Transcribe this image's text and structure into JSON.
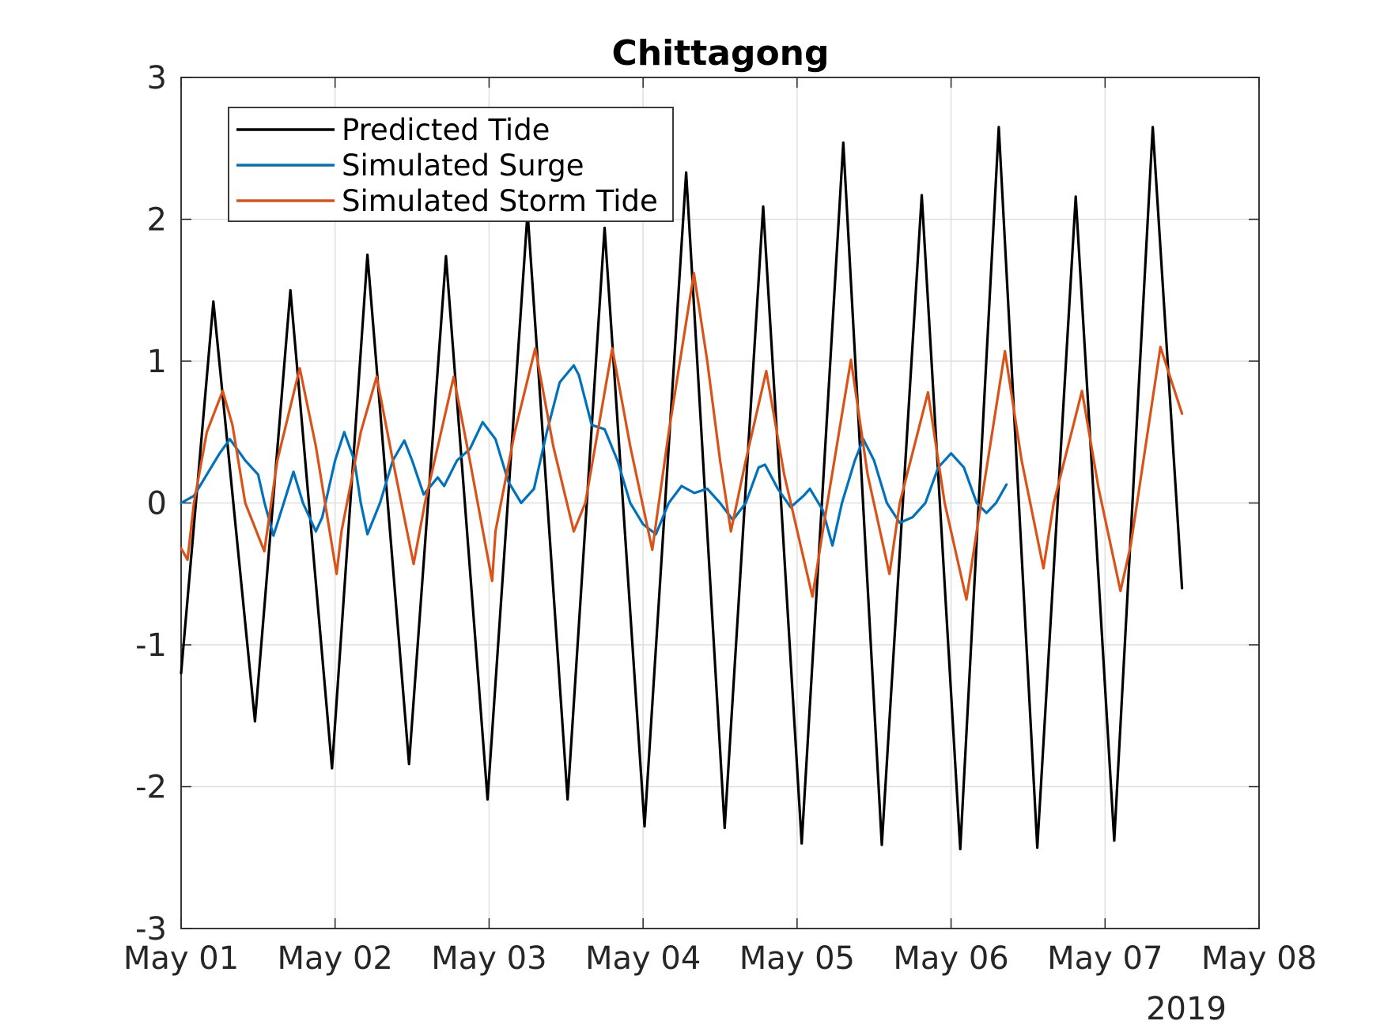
{
  "chart_data": {
    "type": "line",
    "title": "Chittagong",
    "xlabel": "",
    "ylabel": "",
    "year_label": "2019",
    "grid": true,
    "legend_position": "top-left",
    "x_tick_labels": [
      "May 01",
      "May 02",
      "May 03",
      "May 04",
      "May 05",
      "May 06",
      "May 07",
      "May 08"
    ],
    "xlim": [
      "2019-05-01",
      "2019-05-08"
    ],
    "ylim": [
      -3,
      3
    ],
    "y_ticks": [
      -3,
      -2,
      -1,
      0,
      1,
      2,
      3
    ],
    "y_tick_labels": [
      "-3",
      "-2",
      "-1",
      "0",
      "1",
      "2",
      "3"
    ],
    "series": [
      {
        "name": "Predicted Tide",
        "color": "#000000",
        "points": [
          [
            "2019-05-01T00:00",
            -1.2
          ],
          [
            "2019-05-01T05:02",
            1.42
          ],
          [
            "2019-05-01T11:31",
            -1.54
          ],
          [
            "2019-05-01T17:02",
            1.5
          ],
          [
            "2019-05-01T23:31",
            -1.87
          ],
          [
            "2019-05-02T05:02",
            1.75
          ],
          [
            "2019-05-02T11:31",
            -1.84
          ],
          [
            "2019-05-02T17:17",
            1.74
          ],
          [
            "2019-05-02T23:46",
            -2.09
          ],
          [
            "2019-05-03T06:00",
            2.05
          ],
          [
            "2019-05-03T12:14",
            -2.09
          ],
          [
            "2019-05-03T18:00",
            1.94
          ],
          [
            "2019-05-04T00:14",
            -2.28
          ],
          [
            "2019-05-04T06:43",
            2.33
          ],
          [
            "2019-05-04T12:43",
            -2.29
          ],
          [
            "2019-05-04T18:43",
            2.09
          ],
          [
            "2019-05-05T00:43",
            -2.4
          ],
          [
            "2019-05-05T07:12",
            2.54
          ],
          [
            "2019-05-05T13:12",
            -2.41
          ],
          [
            "2019-05-05T19:26",
            2.17
          ],
          [
            "2019-05-06T01:26",
            -2.44
          ],
          [
            "2019-05-06T07:26",
            2.65
          ],
          [
            "2019-05-06T13:26",
            -2.43
          ],
          [
            "2019-05-06T19:26",
            2.16
          ],
          [
            "2019-05-07T01:26",
            -2.38
          ],
          [
            "2019-05-07T07:26",
            2.65
          ],
          [
            "2019-05-07T12:00",
            -0.6
          ]
        ]
      },
      {
        "name": "Simulated Surge",
        "color": "#0072BD",
        "points": [
          [
            "2019-05-01T00:00",
            0.0
          ],
          [
            "2019-05-01T02:00",
            0.05
          ],
          [
            "2019-05-01T04:00",
            0.2
          ],
          [
            "2019-05-01T06:00",
            0.35
          ],
          [
            "2019-05-01T07:36",
            0.45
          ],
          [
            "2019-05-01T10:00",
            0.3
          ],
          [
            "2019-05-01T12:00",
            0.2
          ],
          [
            "2019-05-01T13:00",
            0.0
          ],
          [
            "2019-05-01T14:24",
            -0.23
          ],
          [
            "2019-05-01T16:00",
            0.0
          ],
          [
            "2019-05-01T17:31",
            0.22
          ],
          [
            "2019-05-01T19:00",
            0.0
          ],
          [
            "2019-05-01T21:00",
            -0.2
          ],
          [
            "2019-05-01T22:00",
            -0.1
          ],
          [
            "2019-05-02T00:00",
            0.3
          ],
          [
            "2019-05-02T01:26",
            0.5
          ],
          [
            "2019-05-02T03:00",
            0.3
          ],
          [
            "2019-05-02T04:00",
            0.0
          ],
          [
            "2019-05-02T05:02",
            -0.22
          ],
          [
            "2019-05-02T07:00",
            0.0
          ],
          [
            "2019-05-02T09:00",
            0.3
          ],
          [
            "2019-05-02T10:48",
            0.44
          ],
          [
            "2019-05-02T12:00",
            0.3
          ],
          [
            "2019-05-02T13:48",
            0.06
          ],
          [
            "2019-05-02T16:00",
            0.18
          ],
          [
            "2019-05-02T17:00",
            0.12
          ],
          [
            "2019-05-02T19:00",
            0.3
          ],
          [
            "2019-05-02T21:00",
            0.38
          ],
          [
            "2019-05-02T23:00",
            0.57
          ],
          [
            "2019-05-03T01:00",
            0.45
          ],
          [
            "2019-05-03T03:00",
            0.15
          ],
          [
            "2019-05-03T05:00",
            0.0
          ],
          [
            "2019-05-03T07:00",
            0.1
          ],
          [
            "2019-05-03T09:00",
            0.5
          ],
          [
            "2019-05-03T11:00",
            0.85
          ],
          [
            "2019-05-03T13:12",
            0.97
          ],
          [
            "2019-05-03T14:00",
            0.9
          ],
          [
            "2019-05-03T16:00",
            0.55
          ],
          [
            "2019-05-03T18:00",
            0.52
          ],
          [
            "2019-05-03T20:00",
            0.3
          ],
          [
            "2019-05-03T22:00",
            0.0
          ],
          [
            "2019-05-04T00:00",
            -0.15
          ],
          [
            "2019-05-04T02:00",
            -0.22
          ],
          [
            "2019-05-04T04:00",
            0.0
          ],
          [
            "2019-05-04T06:00",
            0.12
          ],
          [
            "2019-05-04T08:00",
            0.07
          ],
          [
            "2019-05-04T10:00",
            0.1
          ],
          [
            "2019-05-04T12:00",
            0.0
          ],
          [
            "2019-05-04T14:00",
            -0.12
          ],
          [
            "2019-05-04T16:00",
            0.0
          ],
          [
            "2019-05-04T18:00",
            0.25
          ],
          [
            "2019-05-04T19:00",
            0.27
          ],
          [
            "2019-05-04T21:00",
            0.1
          ],
          [
            "2019-05-04T23:00",
            -0.03
          ],
          [
            "2019-05-05T01:00",
            0.05
          ],
          [
            "2019-05-05T02:00",
            0.1
          ],
          [
            "2019-05-05T04:00",
            -0.05
          ],
          [
            "2019-05-05T05:31",
            -0.3
          ],
          [
            "2019-05-05T07:00",
            0.0
          ],
          [
            "2019-05-05T09:00",
            0.3
          ],
          [
            "2019-05-05T10:19",
            0.45
          ],
          [
            "2019-05-05T12:00",
            0.3
          ],
          [
            "2019-05-05T14:00",
            0.0
          ],
          [
            "2019-05-05T16:00",
            -0.14
          ],
          [
            "2019-05-05T18:00",
            -0.1
          ],
          [
            "2019-05-05T20:00",
            0.0
          ],
          [
            "2019-05-05T22:00",
            0.25
          ],
          [
            "2019-05-06T00:00",
            0.35
          ],
          [
            "2019-05-06T02:00",
            0.25
          ],
          [
            "2019-05-06T04:00",
            0.0
          ],
          [
            "2019-05-06T05:31",
            -0.07
          ],
          [
            "2019-05-06T07:00",
            0.0
          ],
          [
            "2019-05-06T08:38",
            0.13
          ]
        ]
      },
      {
        "name": "Simulated Storm Tide",
        "color": "#D95319",
        "points": [
          [
            "2019-05-01T00:00",
            -0.32
          ],
          [
            "2019-05-01T01:00",
            -0.4
          ],
          [
            "2019-05-01T02:00",
            0.0
          ],
          [
            "2019-05-01T04:00",
            0.5
          ],
          [
            "2019-05-01T06:29",
            0.79
          ],
          [
            "2019-05-01T08:00",
            0.55
          ],
          [
            "2019-05-01T10:00",
            0.0
          ],
          [
            "2019-05-01T12:58",
            -0.34
          ],
          [
            "2019-05-01T15:00",
            0.3
          ],
          [
            "2019-05-01T18:29",
            0.95
          ],
          [
            "2019-05-01T21:00",
            0.4
          ],
          [
            "2019-05-02T00:14",
            -0.5
          ],
          [
            "2019-05-02T01:00",
            -0.2
          ],
          [
            "2019-05-02T04:00",
            0.5
          ],
          [
            "2019-05-02T06:29",
            0.89
          ],
          [
            "2019-05-02T09:00",
            0.3
          ],
          [
            "2019-05-02T12:14",
            -0.43
          ],
          [
            "2019-05-02T14:00",
            0.0
          ],
          [
            "2019-05-02T18:29",
            0.89
          ],
          [
            "2019-05-02T21:00",
            0.3
          ],
          [
            "2019-05-03T00:29",
            -0.55
          ],
          [
            "2019-05-03T01:00",
            -0.2
          ],
          [
            "2019-05-03T04:00",
            0.5
          ],
          [
            "2019-05-03T07:12",
            1.09
          ],
          [
            "2019-05-03T10:00",
            0.4
          ],
          [
            "2019-05-03T13:12",
            -0.2
          ],
          [
            "2019-05-03T15:00",
            0.0
          ],
          [
            "2019-05-03T19:12",
            1.09
          ],
          [
            "2019-05-03T22:00",
            0.4
          ],
          [
            "2019-05-04T01:26",
            -0.33
          ],
          [
            "2019-05-04T04:00",
            0.5
          ],
          [
            "2019-05-04T07:55",
            1.62
          ],
          [
            "2019-05-04T10:00",
            1.0
          ],
          [
            "2019-05-04T12:00",
            0.3
          ],
          [
            "2019-05-04T13:41",
            -0.2
          ],
          [
            "2019-05-04T16:00",
            0.3
          ],
          [
            "2019-05-04T19:12",
            0.93
          ],
          [
            "2019-05-04T22:00",
            0.2
          ],
          [
            "2019-05-05T02:24",
            -0.66
          ],
          [
            "2019-05-05T04:00",
            -0.2
          ],
          [
            "2019-05-05T08:24",
            1.01
          ],
          [
            "2019-05-05T11:00",
            0.2
          ],
          [
            "2019-05-05T14:24",
            -0.5
          ],
          [
            "2019-05-05T16:00",
            0.0
          ],
          [
            "2019-05-05T20:24",
            0.78
          ],
          [
            "2019-05-05T23:00",
            0.0
          ],
          [
            "2019-05-06T02:24",
            -0.68
          ],
          [
            "2019-05-06T04:00",
            -0.2
          ],
          [
            "2019-05-06T08:24",
            1.07
          ],
          [
            "2019-05-06T11:00",
            0.3
          ],
          [
            "2019-05-06T14:24",
            -0.46
          ],
          [
            "2019-05-06T16:00",
            0.0
          ],
          [
            "2019-05-06T20:24",
            0.79
          ],
          [
            "2019-05-06T23:00",
            0.1
          ],
          [
            "2019-05-07T02:24",
            -0.62
          ],
          [
            "2019-05-07T04:00",
            -0.3
          ],
          [
            "2019-05-07T08:38",
            1.1
          ],
          [
            "2019-05-07T12:00",
            0.63
          ]
        ]
      }
    ]
  }
}
